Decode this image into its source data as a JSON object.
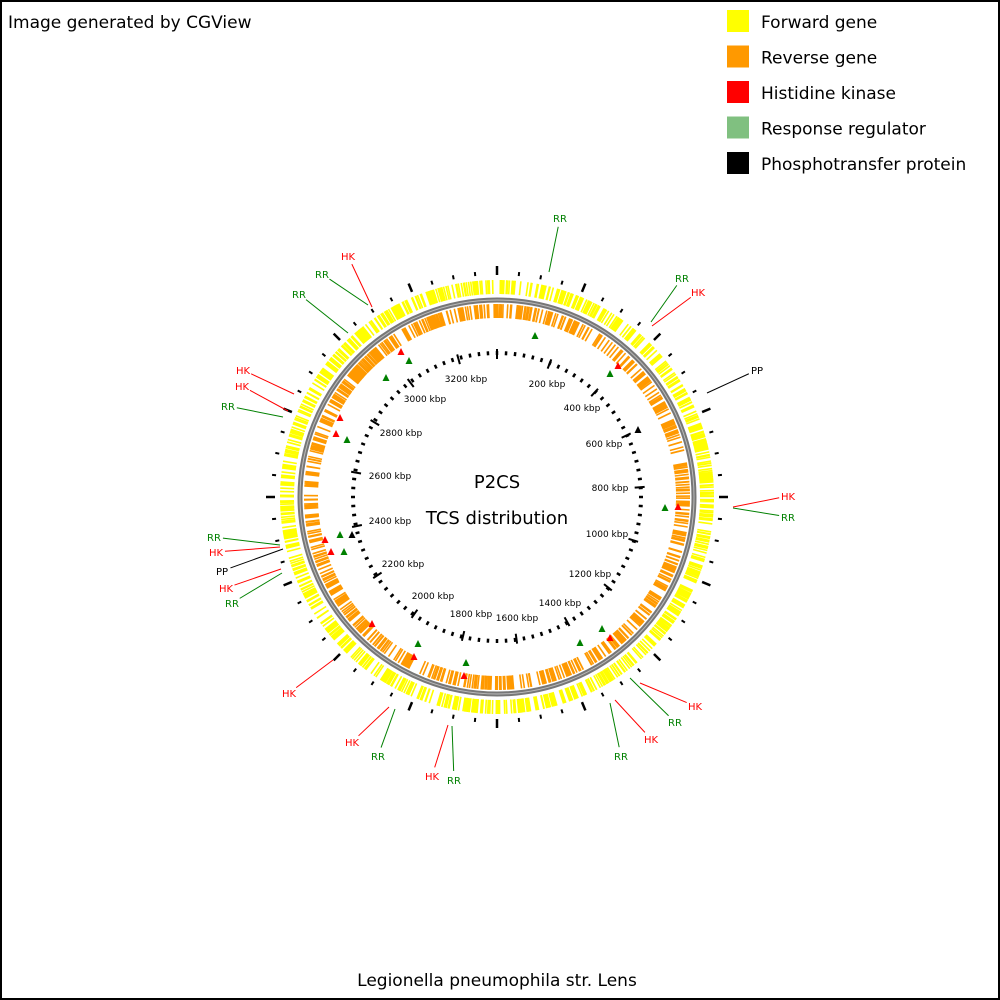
{
  "header": {
    "title": "Image generated by CGView"
  },
  "legend": {
    "items": [
      "Forward gene",
      "Reverse gene",
      "Histidine kinase",
      "Response regulator",
      "Phosphotransfer protein"
    ]
  },
  "map": {
    "title": "P2CS",
    "subtitle": "TCS distribution",
    "scale_labels": [
      "200 kbp",
      "400 kbp",
      "600 kbp",
      "800 kbp",
      "1000 kbp",
      "1200 kbp",
      "1400 kbp",
      "1600 kbp",
      "1800 kbp",
      "2000 kbp",
      "2200 kbp",
      "2400 kbp",
      "2600 kbp",
      "2800 kbp",
      "3000 kbp",
      "3200 kbp"
    ],
    "feature_labels": [
      "RR",
      "RR",
      "HK",
      "PP",
      "HK",
      "RR",
      "HK",
      "RR",
      "HK",
      "RR",
      "RR",
      "HK",
      "RR",
      "HK",
      "HK",
      "RR",
      "HK",
      "PP",
      "HK",
      "RR",
      "RR",
      "HK",
      "HK",
      "RR",
      "RR",
      "HK"
    ]
  },
  "footer": {
    "title": "Legionella pneumophila str. Lens"
  }
}
